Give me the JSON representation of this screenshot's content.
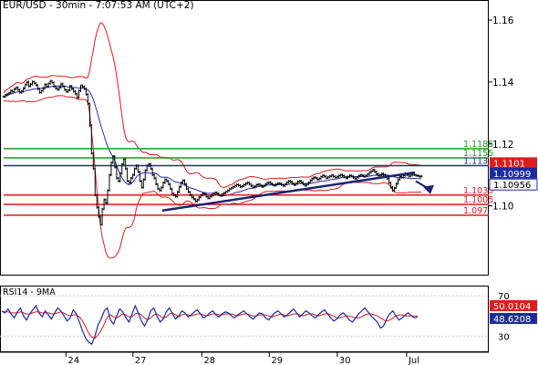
{
  "title": "EUR/USD - 30min - 7:07:53 AM (UTC+2)",
  "rsi_title": "RSI14 - 9MA",
  "colors": {
    "candle": "#000000",
    "sma": "#2929b8",
    "bollinger": "#dd1c1c",
    "resistance_green": "#1f9a1f",
    "pivot_blue": "#1c2aa0",
    "support_red": "#dd1c1c",
    "trendline": "#1c2270",
    "rsi": "#1c2aa0",
    "rsi_ma": "#dd1c1c",
    "price_tag": "#1c2aa0",
    "red_tag": "#dd1c1c",
    "tag_text": "#ffffff"
  },
  "chart_data": [
    {
      "type": "line",
      "panel": "price",
      "x_tick_labels": [
        "24",
        "27",
        "28",
        "29",
        "30",
        "Jul"
      ],
      "y_tick_labels": [
        "1.16",
        "1.14",
        "1.12",
        "1.10"
      ],
      "ylim": [
        1.0775,
        1.1665
      ],
      "grid": false,
      "series": [
        {
          "values": [
            1.1353,
            1.1358,
            1.1361,
            1.1365,
            1.1372,
            1.1369,
            1.1378,
            1.1382,
            1.1375,
            1.1366,
            1.137,
            1.138,
            1.1392,
            1.14,
            1.1387,
            1.1393,
            1.1401,
            1.1396,
            1.139,
            1.1378,
            1.1366,
            1.1372,
            1.138,
            1.1392,
            1.1385,
            1.1395,
            1.1403,
            1.1398,
            1.1386,
            1.138,
            1.1376,
            1.1383,
            1.1394,
            1.1386,
            1.1375,
            1.1369,
            1.1374,
            1.1387,
            1.1378,
            1.137,
            1.1362,
            1.135,
            1.1372,
            1.1388,
            1.1385,
            1.1378,
            1.136,
            1.133,
            1.126,
            1.117,
            1.112,
            1.1035,
            1.0995,
            1.0965,
            1.094,
            1.099,
            1.102,
            1.101,
            1.105,
            1.11,
            1.114,
            1.116,
            1.1125,
            1.109,
            1.108,
            1.1105,
            1.1135,
            1.115,
            1.112,
            1.108,
            1.1075,
            1.109,
            1.11,
            1.112,
            1.113,
            1.111,
            1.108,
            1.106,
            1.1085,
            1.1115,
            1.113,
            1.1135,
            1.112,
            1.11,
            1.109,
            1.107,
            1.1055,
            1.105,
            1.106,
            1.1075,
            1.1085,
            1.108,
            1.107,
            1.1055,
            1.104,
            1.1035,
            1.103,
            1.1045,
            1.1062,
            1.1075,
            1.1082,
            1.107,
            1.1055,
            1.1045,
            1.1035,
            1.1028,
            1.1022,
            1.1015,
            1.102,
            1.1028,
            1.1035,
            1.104,
            1.1038,
            1.103,
            1.1025,
            1.103,
            1.1034,
            1.104,
            1.1043,
            1.104,
            1.1035,
            1.1033,
            1.1038,
            1.1042,
            1.1046,
            1.105,
            1.1055,
            1.1058,
            1.1062,
            1.1065,
            1.1068,
            1.1066,
            1.1062,
            1.1064,
            1.1068,
            1.1072,
            1.1075,
            1.107,
            1.1065,
            1.106,
            1.1063,
            1.1068,
            1.107,
            1.1066,
            1.1062,
            1.1065,
            1.107,
            1.1074,
            1.1076,
            1.1072,
            1.1068,
            1.1066,
            1.107,
            1.1073,
            1.1072,
            1.1068,
            1.1065,
            1.107,
            1.1076,
            1.108,
            1.1078,
            1.1072,
            1.1068,
            1.1072,
            1.1078,
            1.108,
            1.1076,
            1.107,
            1.1066,
            1.107,
            1.1075,
            1.1082,
            1.1088,
            1.1092,
            1.109,
            1.1085,
            1.1088,
            1.1094,
            1.1098,
            1.1095,
            1.109,
            1.1093,
            1.1096,
            1.1099,
            1.1095,
            1.1092,
            1.1094,
            1.1098,
            1.11,
            1.1097,
            1.1093,
            1.109,
            1.1094,
            1.1098,
            1.1096,
            1.1091,
            1.1088,
            1.1092,
            1.1097,
            1.11,
            1.1098,
            1.1095,
            1.1098,
            1.1102,
            1.1108,
            1.1112,
            1.1116,
            1.111,
            1.1103,
            1.1098,
            1.11,
            1.1104,
            1.11,
            1.1096,
            1.1088,
            1.1075,
            1.106,
            1.105,
            1.1058,
            1.1072,
            1.1085,
            1.1095,
            1.1092,
            1.1098,
            1.1104,
            1.11,
            1.1096,
            1.1099,
            1.1103,
            1.11,
            1.1098,
            1.1097,
            1.1095,
            1.1096
          ]
        }
      ],
      "horizontal_levels": [
        {
          "value": 1.1185,
          "label": "1.1185",
          "role": "resistance"
        },
        {
          "value": 1.1155,
          "label": "1.1155",
          "role": "resistance"
        },
        {
          "value": 1.113,
          "label": "1.113",
          "role": "pivot"
        },
        {
          "value": 1.1035,
          "label": "1.1035",
          "role": "support"
        },
        {
          "value": 1.1005,
          "label": "1.1005",
          "role": "support"
        },
        {
          "value": 1.097,
          "label": "1.097",
          "role": "support"
        }
      ],
      "price_tags": [
        {
          "value": 1.1101,
          "label": "1.1101",
          "style": "red"
        },
        {
          "value": 1.10999,
          "label": "1.10999",
          "style": "blue"
        },
        {
          "value": 1.10956,
          "label": "1.10956",
          "style": "outline"
        }
      ],
      "trendline": {
        "from_value": 1.0985,
        "to_value": 1.1108
      },
      "projection": {
        "from_value": 1.108,
        "to_value": 1.1047
      }
    },
    {
      "type": "line",
      "panel": "rsi",
      "y_tick_labels": [
        "70",
        "30"
      ],
      "ylim": [
        15,
        80
      ],
      "guide_levels": [
        70,
        30
      ],
      "series": [
        {
          "values": [
            55,
            53,
            57,
            52,
            48,
            54,
            58,
            50,
            46,
            52,
            56,
            60,
            53,
            49,
            55,
            51,
            47,
            53,
            58,
            55,
            50,
            45,
            48,
            56,
            52,
            44,
            35,
            28,
            24,
            22,
            30,
            41,
            47,
            55,
            58,
            46,
            42,
            50,
            57,
            54,
            48,
            44,
            52,
            60,
            53,
            45,
            40,
            46,
            55,
            58,
            50,
            44,
            47,
            54,
            58,
            52,
            47,
            50,
            55,
            53,
            49,
            51,
            54,
            56,
            52,
            48,
            50,
            53,
            55,
            51,
            49,
            52,
            54,
            53,
            50,
            48,
            51,
            53,
            55,
            52,
            49,
            47,
            50,
            53,
            52,
            48,
            46,
            50,
            53,
            55,
            52,
            49,
            51,
            54,
            57,
            53,
            49,
            52,
            55,
            53,
            50,
            48,
            51,
            54,
            56,
            52,
            48,
            45,
            47,
            51,
            53,
            50,
            46,
            44,
            48,
            52,
            55,
            58,
            54,
            50,
            47,
            44,
            38,
            40,
            47,
            52,
            55,
            50,
            46,
            48,
            51,
            53,
            50,
            48,
            49
          ],
          "printed_value": "48.6208"
        },
        {
          "values": [
            54,
            54,
            54,
            53,
            53,
            53,
            54,
            53,
            52,
            52,
            53,
            54,
            54,
            53,
            53,
            53,
            52,
            52,
            53,
            54,
            53,
            51,
            50,
            51,
            51,
            49,
            45,
            39,
            33,
            29,
            28,
            31,
            36,
            42,
            49,
            51,
            49,
            48,
            50,
            52,
            51,
            49,
            49,
            52,
            53,
            51,
            48,
            46,
            48,
            51,
            52,
            50,
            48,
            49,
            52,
            53,
            51,
            49,
            51,
            52,
            51,
            50,
            51,
            52,
            52,
            51,
            50,
            51,
            52,
            52,
            51,
            51,
            52,
            52,
            52,
            51,
            50,
            51,
            52,
            52,
            51,
            50,
            50,
            51,
            51,
            51,
            50,
            49,
            50,
            51,
            52,
            51,
            50,
            51,
            52,
            52,
            51,
            50,
            51,
            52,
            52,
            51,
            50,
            51,
            52,
            52,
            51,
            50,
            48,
            48,
            49,
            50,
            50,
            49,
            48,
            48,
            49,
            51,
            52,
            52,
            51,
            50,
            48,
            46,
            45,
            46,
            48,
            50,
            51,
            51,
            50,
            50,
            50,
            50,
            50
          ],
          "printed_value": "50.0104"
        }
      ]
    }
  ]
}
